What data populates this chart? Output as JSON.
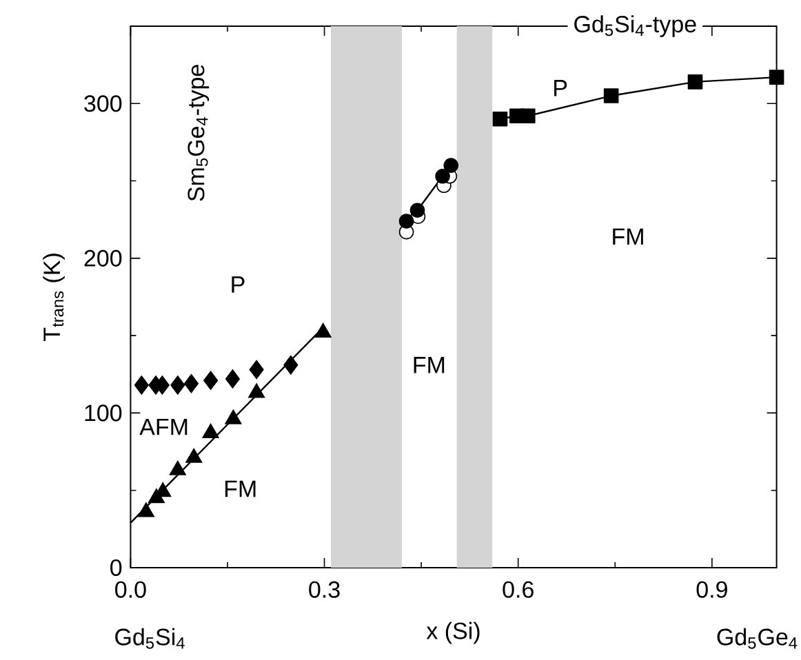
{
  "chart_data": {
    "type": "scatter",
    "xlabel": "x (Si)",
    "ylabel": "T$_{trans}$ (K)",
    "xlim": [
      0,
      1.0
    ],
    "ylim": [
      0,
      350
    ],
    "xticks": [
      {
        "value": 0,
        "label": "0.0"
      },
      0.3,
      0.6,
      0.9
    ],
    "yticks": [
      0,
      100,
      200,
      300
    ],
    "bands": [
      {
        "axis": "x",
        "from": 0.31,
        "to": 0.42,
        "color": "#d4d4d4"
      },
      {
        "axis": "x",
        "from": 0.505,
        "to": 0.56,
        "color": "#d4d4d4"
      }
    ],
    "series": [
      {
        "type": "line",
        "marker": "none",
        "color": "#000000",
        "x": [
          0,
          0.3
        ],
        "values": [
          29,
          156
        ]
      },
      {
        "marker": "diamond",
        "color": "#000000",
        "x": [
          0.017,
          0.039,
          0.049,
          0.073,
          0.094,
          0.124,
          0.158,
          0.195,
          0.248
        ],
        "values": [
          118,
          118,
          118,
          118,
          119,
          121,
          122,
          128,
          131
        ]
      },
      {
        "marker": "triangle",
        "color": "#000000",
        "x": [
          0.024,
          0.04,
          0.05,
          0.073,
          0.098,
          0.124,
          0.159,
          0.195,
          0.298
        ],
        "values": [
          36,
          45,
          49,
          63,
          71,
          87,
          96,
          113,
          152
        ]
      },
      {
        "marker": "circle",
        "color": "#ffffff",
        "x": [
          0.427,
          0.445,
          0.485,
          0.494
        ],
        "values": [
          217,
          227,
          247,
          253
        ]
      },
      {
        "type": "line",
        "marker": "circle",
        "color": "#000000",
        "x": [
          0.427,
          0.444,
          0.483,
          0.496
        ],
        "values": [
          224,
          231,
          253,
          260
        ]
      },
      {
        "type": "line",
        "marker": "square",
        "color": "#000000",
        "x": [
          0.572,
          0.598,
          0.615,
          0.744,
          0.874,
          1.0
        ],
        "values": [
          290,
          292,
          292,
          305,
          314,
          317
        ]
      }
    ],
    "annotations": [
      "Sm$_{5}$Ge$_{4}$-type",
      "P",
      "AFM",
      "FM",
      "FM",
      "P",
      "FM",
      "Gd$_{5}$Si$_{4}$-type",
      "Gd$_{5}$Si$_{4}$",
      "Gd$_{5}$Ge$_{4}$"
    ]
  }
}
